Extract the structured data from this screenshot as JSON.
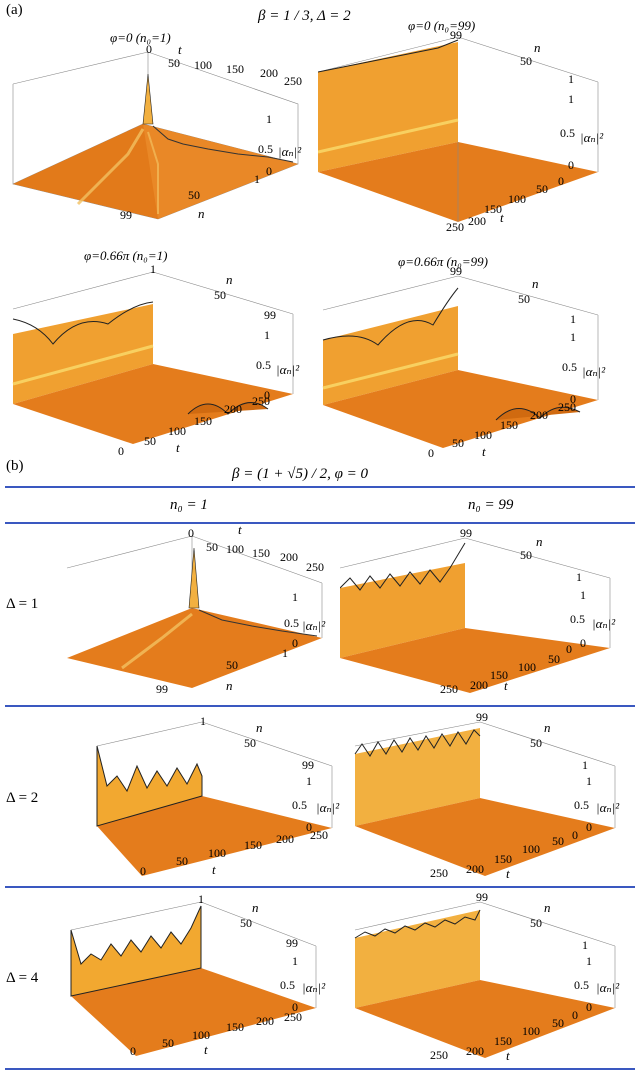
{
  "figure": {
    "part_a_label": "(a)",
    "part_b_label": "(b)",
    "part_a_title": "β = 1 / 3, Δ = 2",
    "part_b_title": "β = (1 + √5) / 2,  φ = 0",
    "col_headers": [
      "n₀ = 1",
      "n₀ = 99"
    ],
    "row_labels": [
      "Δ = 1",
      "Δ = 2",
      "Δ = 4"
    ],
    "axis_prob_label": "|αₙ|²",
    "axis_n_label": "n",
    "axis_t_label": "t",
    "z_ticks": [
      "0",
      "0.5",
      "1"
    ],
    "t_ticks_back": [
      "0",
      "50",
      "100",
      "150",
      "200",
      "250"
    ],
    "t_ticks_front": [
      "0",
      "50",
      "100",
      "150",
      "200",
      "250"
    ],
    "t_ticks_rev": [
      "250",
      "200",
      "150",
      "100",
      "50",
      "0"
    ],
    "n_ticks": [
      "99",
      "50",
      "1"
    ]
  },
  "panels": [
    {
      "id": "a1",
      "subtitle": "φ=0 (n₀=1)"
    },
    {
      "id": "a2",
      "subtitle": "φ=0 (n₀=99)"
    },
    {
      "id": "a3",
      "subtitle": "φ=0.66π (n₀=1)"
    },
    {
      "id": "a4",
      "subtitle": "φ=0.66π (n₀=99)"
    }
  ],
  "colors": {
    "surface": "#e8801e",
    "surface_light": "#f5b040",
    "edge": "#222222",
    "rule": "#3a58c0"
  }
}
